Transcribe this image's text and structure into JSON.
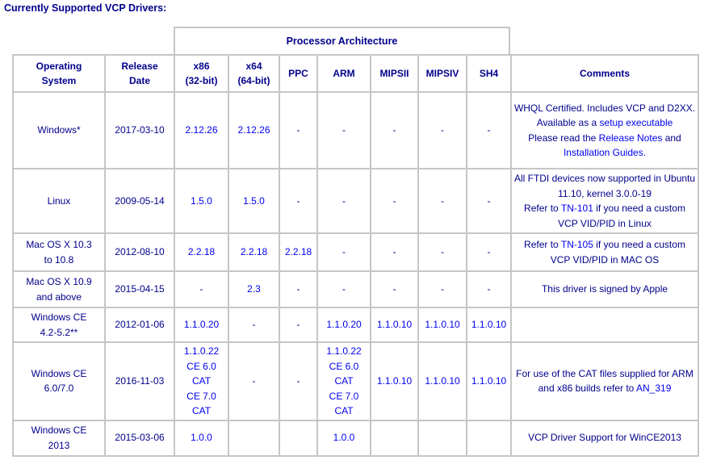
{
  "title": "Currently Supported VCP Drivers:",
  "colors": {
    "text_navy": "#00008B",
    "link_blue": "#0000EE",
    "border_gray": "#C6C6C6",
    "background": "#FFFFFF"
  },
  "table": {
    "group_header": "Processor Architecture",
    "columns": [
      {
        "id": "os",
        "label": "Operating\nSystem"
      },
      {
        "id": "date",
        "label": "Release\nDate"
      },
      {
        "id": "x86",
        "label": "x86\n(32-bit)"
      },
      {
        "id": "x64",
        "label": "x64\n(64-bit)"
      },
      {
        "id": "ppc",
        "label": "PPC"
      },
      {
        "id": "arm",
        "label": "ARM"
      },
      {
        "id": "mips2",
        "label": "MIPSII"
      },
      {
        "id": "mips4",
        "label": "MIPSIV"
      },
      {
        "id": "sh4",
        "label": "SH4"
      },
      {
        "id": "comments",
        "label": "Comments"
      }
    ],
    "rows": [
      {
        "os": [
          {
            "t": "Windows*"
          }
        ],
        "date": [
          {
            "t": "2017-03-10"
          }
        ],
        "x86": [
          {
            "t": "2.12.26",
            "a": true
          }
        ],
        "x64": [
          {
            "t": "2.12.26",
            "a": true
          }
        ],
        "ppc": [
          {
            "t": "-"
          }
        ],
        "arm": [
          {
            "t": "-"
          }
        ],
        "mips2": [
          {
            "t": "-"
          }
        ],
        "mips4": [
          {
            "t": "-"
          }
        ],
        "sh4": [
          {
            "t": "-"
          }
        ],
        "comments": [
          {
            "t": "WHQL Certified. Includes VCP and D2XX."
          },
          {
            "br": true
          },
          {
            "t": "Available as a "
          },
          {
            "t": "setup executable",
            "a": true
          },
          {
            "br": true
          },
          {
            "t": "Please read the "
          },
          {
            "t": "Release Notes",
            "a": true
          },
          {
            "t": " and "
          },
          {
            "t": "Installation Guides.",
            "a": true
          }
        ]
      },
      {
        "os": [
          {
            "t": "Linux"
          }
        ],
        "date": [
          {
            "t": "2009-05-14"
          }
        ],
        "x86": [
          {
            "t": "1.5.0",
            "a": true
          }
        ],
        "x64": [
          {
            "t": "1.5.0",
            "a": true
          }
        ],
        "ppc": [
          {
            "t": "-"
          }
        ],
        "arm": [
          {
            "t": "-"
          }
        ],
        "mips2": [
          {
            "t": "-"
          }
        ],
        "mips4": [
          {
            "t": "-"
          }
        ],
        "sh4": [
          {
            "t": "-"
          }
        ],
        "comments": [
          {
            "t": "All FTDI devices now supported in Ubuntu 11.10, kernel 3.0.0-19"
          },
          {
            "br": true
          },
          {
            "t": "Refer to "
          },
          {
            "t": "TN-101",
            "a": true
          },
          {
            "t": " if you need a custom VCP VID/PID in Linux"
          }
        ]
      },
      {
        "os": [
          {
            "t": "Mac OS X 10.3"
          },
          {
            "br": true
          },
          {
            "t": "to 10.8"
          }
        ],
        "date": [
          {
            "t": "2012-08-10"
          }
        ],
        "x86": [
          {
            "t": "2.2.18",
            "a": true
          }
        ],
        "x64": [
          {
            "t": "2.2.18",
            "a": true
          }
        ],
        "ppc": [
          {
            "t": "2.2.18",
            "a": true
          }
        ],
        "arm": [
          {
            "t": "-"
          }
        ],
        "mips2": [
          {
            "t": "-"
          }
        ],
        "mips4": [
          {
            "t": "-"
          }
        ],
        "sh4": [
          {
            "t": "-"
          }
        ],
        "comments": [
          {
            "t": "Refer to "
          },
          {
            "t": "TN-105",
            "a": true
          },
          {
            "t": " if you need a custom VCP VID/PID in MAC OS"
          }
        ]
      },
      {
        "os": [
          {
            "t": "Mac OS X 10.9"
          },
          {
            "br": true
          },
          {
            "t": "and above"
          }
        ],
        "date": [
          {
            "t": "2015-04-15"
          }
        ],
        "x86": [
          {
            "t": "-"
          }
        ],
        "x64": [
          {
            "t": "2.3",
            "a": true
          }
        ],
        "ppc": [
          {
            "t": "-"
          }
        ],
        "arm": [
          {
            "t": "-"
          }
        ],
        "mips2": [
          {
            "t": "-"
          }
        ],
        "mips4": [
          {
            "t": "-"
          }
        ],
        "sh4": [
          {
            "t": "-"
          }
        ],
        "comments": [
          {
            "t": "This driver is signed by Apple"
          }
        ]
      },
      {
        "os": [
          {
            "t": "Windows CE"
          },
          {
            "br": true
          },
          {
            "t": "4.2-5.2**"
          }
        ],
        "date": [
          {
            "t": "2012-01-06"
          }
        ],
        "x86": [
          {
            "t": "1.1.0.20",
            "a": true
          }
        ],
        "x64": [
          {
            "t": "-"
          }
        ],
        "ppc": [
          {
            "t": "-"
          }
        ],
        "arm": [
          {
            "t": "1.1.0.20",
            "a": true
          }
        ],
        "mips2": [
          {
            "t": "1.1.0.10",
            "a": true
          }
        ],
        "mips4": [
          {
            "t": "1.1.0.10",
            "a": true
          }
        ],
        "sh4": [
          {
            "t": "1.1.0.10",
            "a": true
          }
        ],
        "comments": []
      },
      {
        "os": [
          {
            "t": "Windows CE"
          },
          {
            "br": true
          },
          {
            "t": "6.0/7.0"
          }
        ],
        "date": [
          {
            "t": "2016-11-03"
          }
        ],
        "x86": [
          {
            "t": "1.1.0.22",
            "a": true
          },
          {
            "br": true
          },
          {
            "t": "CE 6.0",
            "a": true
          },
          {
            "br": true
          },
          {
            "t": "CAT",
            "a": true
          },
          {
            "br": true
          },
          {
            "t": "CE 7.0",
            "a": true
          },
          {
            "br": true
          },
          {
            "t": "CAT",
            "a": true
          }
        ],
        "x64": [
          {
            "t": "-"
          }
        ],
        "ppc": [
          {
            "t": "-"
          }
        ],
        "arm": [
          {
            "t": "1.1.0.22",
            "a": true
          },
          {
            "br": true
          },
          {
            "t": "CE 6.0",
            "a": true
          },
          {
            "br": true
          },
          {
            "t": "CAT",
            "a": true
          },
          {
            "br": true
          },
          {
            "t": "CE 7.0",
            "a": true
          },
          {
            "br": true
          },
          {
            "t": "CAT",
            "a": true
          }
        ],
        "mips2": [
          {
            "t": "1.1.0.10",
            "a": true
          }
        ],
        "mips4": [
          {
            "t": "1.1.0.10",
            "a": true
          }
        ],
        "sh4": [
          {
            "t": "1.1.0.10",
            "a": true
          }
        ],
        "comments": [
          {
            "t": "For use of the CAT files supplied for ARM and x86 builds refer to "
          },
          {
            "t": "AN_319",
            "a": true
          }
        ]
      },
      {
        "os": [
          {
            "t": "Windows CE"
          },
          {
            "br": true
          },
          {
            "t": "2013"
          }
        ],
        "date": [
          {
            "t": "2015-03-06"
          }
        ],
        "x86": [
          {
            "t": "1.0.0",
            "a": true
          }
        ],
        "x64": [],
        "ppc": [],
        "arm": [
          {
            "t": "1.0.0",
            "a": true
          }
        ],
        "mips2": [],
        "mips4": [],
        "sh4": [],
        "comments": [
          {
            "t": "VCP Driver Support for WinCE2013"
          }
        ]
      }
    ]
  }
}
